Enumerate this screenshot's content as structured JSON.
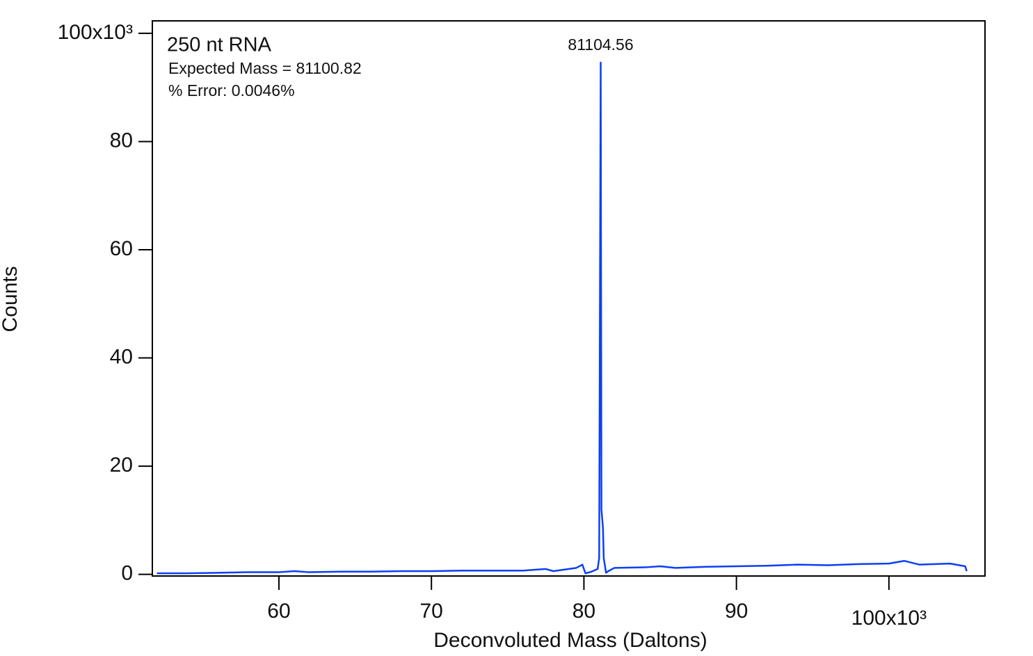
{
  "chart_data": {
    "type": "line",
    "x_label": "Deconvoluted Mass (Daltons)",
    "y_label": "Counts",
    "annotations": [
      "250 nt RNA",
      "Expected Mass = 81100.82",
      "% Error:  0.0046%",
      "81104.56"
    ],
    "x": [
      52.0,
      54.0,
      56.0,
      58.0,
      60.0,
      61.0,
      62.0,
      64.0,
      66.0,
      68.0,
      70.0,
      72.0,
      74.0,
      76.0,
      77.5,
      78.0,
      79.5,
      79.9,
      80.1,
      80.5,
      80.9,
      81.0,
      81.1,
      81.15,
      81.25,
      81.3,
      81.45,
      81.6,
      82.0,
      84.0,
      85.0,
      86.0,
      88.0,
      90.0,
      92.0,
      94.0,
      96.0,
      98.0,
      100.0,
      101.0,
      102.0,
      104.0,
      105.0,
      105.1
    ],
    "series": [
      {
        "color": "#0b3ff5",
        "values": [
          0.2,
          0.2,
          0.3,
          0.4,
          0.4,
          0.6,
          0.4,
          0.5,
          0.5,
          0.6,
          0.6,
          0.7,
          0.7,
          0.7,
          1.0,
          0.6,
          1.2,
          1.8,
          0.2,
          0.5,
          1.0,
          3.0,
          94.6,
          12.0,
          8.5,
          3.0,
          0.3,
          0.6,
          1.2,
          1.3,
          1.5,
          1.2,
          1.4,
          1.5,
          1.6,
          1.8,
          1.7,
          1.9,
          2.0,
          2.5,
          1.8,
          2.0,
          1.5,
          0.6
        ]
      }
    ],
    "xlim": [
      51.7,
      106.3
    ],
    "xticks": [
      60,
      70,
      80,
      90,
      {
        "value": 100,
        "label": "100x10³"
      }
    ],
    "ylim": [
      -0.3,
      102.3
    ],
    "yticks": [
      0,
      20,
      40,
      60,
      80,
      {
        "value": 100,
        "label": "100x10³"
      }
    ]
  }
}
